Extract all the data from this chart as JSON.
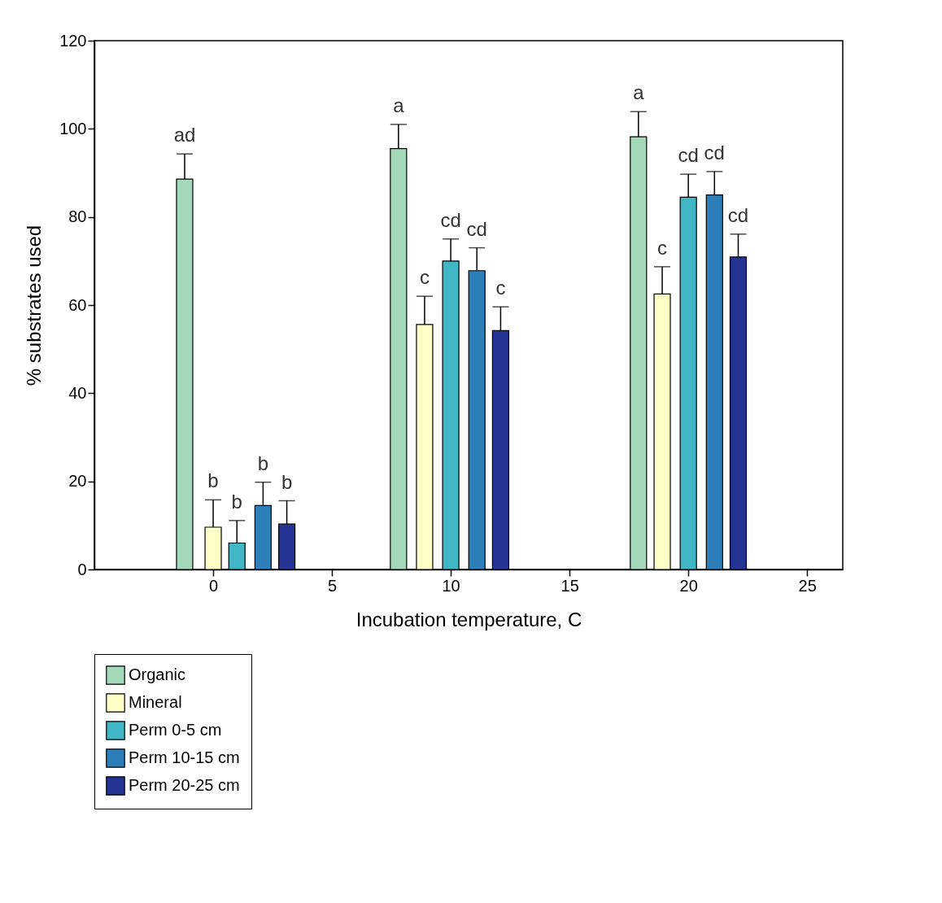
{
  "chart_data": {
    "type": "bar",
    "xlabel": "Incubation temperature, C",
    "ylabel": "% substrates used",
    "xlim": [
      -5,
      26.5
    ],
    "xticks": [
      0,
      5,
      10,
      15,
      20,
      25
    ],
    "ylim": [
      0,
      120
    ],
    "yticks": [
      0,
      20,
      40,
      60,
      80,
      100,
      120
    ],
    "grid": false,
    "legend": "bottom left",
    "series": [
      {
        "name": "Organic",
        "color": "#a3d9b8",
        "x": [
          -1.2,
          7.8,
          17.9
        ],
        "values": [
          88.6,
          95.5,
          98.2
        ],
        "errors": [
          [
            88.6,
            94.3
          ],
          [
            95.5,
            101
          ],
          [
            98.2,
            103.9
          ]
        ]
      },
      {
        "name": "Mineral",
        "color": "#ffffc8",
        "x": [
          0,
          8.9,
          18.9
        ],
        "values": [
          9.6,
          55.6,
          62.5
        ],
        "errors": [
          [
            9.6,
            15.8
          ],
          [
            55.6,
            62
          ],
          [
            62.5,
            68.7
          ]
        ]
      },
      {
        "name": "Perm 0-5 cm",
        "color": "#41b6c4",
        "x": [
          1,
          10,
          20
        ],
        "values": [
          6.0,
          70,
          84.5
        ],
        "errors": [
          [
            6.0,
            11.1
          ],
          [
            70,
            75
          ],
          [
            84.5,
            89.7
          ]
        ]
      },
      {
        "name": "Perm 10-15 cm",
        "color": "#2c7fb8",
        "x": [
          2.1,
          11.1,
          21.1
        ],
        "values": [
          14.5,
          67.8,
          85
        ],
        "errors": [
          [
            14.5,
            19.8
          ],
          [
            67.8,
            73
          ],
          [
            85,
            90.3
          ]
        ]
      },
      {
        "name": "Perm 20-25 cm",
        "color": "#253494",
        "x": [
          3.1,
          12.1,
          22.1
        ],
        "values": [
          10.3,
          54.2,
          70.9
        ],
        "errors": [
          [
            10.3,
            15.6
          ],
          [
            54.2,
            59.6
          ],
          [
            70.9,
            76.1
          ]
        ]
      }
    ],
    "annotations": [
      {
        "text": "ad",
        "x": -1.2,
        "y": 94.3
      },
      {
        "text": "b",
        "x": 0,
        "y": 15.8
      },
      {
        "text": "b",
        "x": 1,
        "y": 11.1
      },
      {
        "text": "b",
        "x": 2.1,
        "y": 19.8
      },
      {
        "text": "b",
        "x": 3.1,
        "y": 15.6
      },
      {
        "text": "a",
        "x": 7.8,
        "y": 101
      },
      {
        "text": "c",
        "x": 8.9,
        "y": 62
      },
      {
        "text": "cd",
        "x": 10,
        "y": 75
      },
      {
        "text": "cd",
        "x": 11.1,
        "y": 73
      },
      {
        "text": "c",
        "x": 12.1,
        "y": 59.6
      },
      {
        "text": "a",
        "x": 17.9,
        "y": 103.9
      },
      {
        "text": "c",
        "x": 18.9,
        "y": 68.7
      },
      {
        "text": "cd",
        "x": 20,
        "y": 89.7
      },
      {
        "text": "cd",
        "x": 21.1,
        "y": 90.3
      },
      {
        "text": "cd",
        "x": 22.1,
        "y": 76.1
      }
    ]
  }
}
